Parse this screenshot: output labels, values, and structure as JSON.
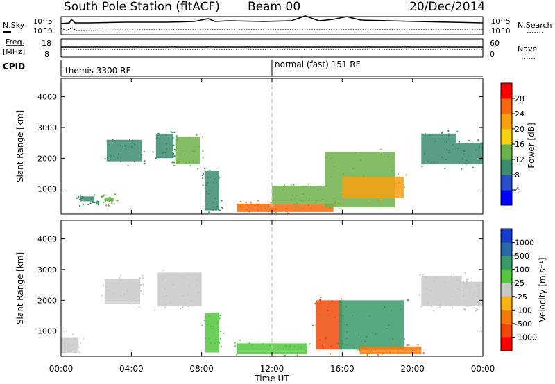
{
  "header": {
    "title": "South Pole Station (fitACF)",
    "beam": "Beam 00",
    "date": "20/Dec/2014"
  },
  "side_labels": {
    "nsky": "N.Sky",
    "freq": "Freq.",
    "freq_unit": "[MHz]",
    "cpid": "CPID",
    "nsearch": "N.Search",
    "nave": "Nave"
  },
  "cpid_programs": [
    {
      "label": "themis 3300 RF",
      "start_hour": 0
    },
    {
      "label": "normal (fast) 151 RF",
      "start_hour": 12
    }
  ],
  "noise_panel": {
    "left_ticks": [
      "10^5",
      "10^0"
    ],
    "right_ticks": [
      "10^5",
      "10^0"
    ]
  },
  "freq_panel": {
    "left_ticks": [
      "18",
      "8"
    ],
    "right_ticks": [
      "60",
      "0"
    ]
  },
  "x_axis": {
    "label": "Time UT",
    "ticks": [
      "00:00",
      "04:00",
      "08:00",
      "12:00",
      "16:00",
      "20:00",
      "00:00"
    ]
  },
  "power_panel": {
    "ylabel": "Slant Range [km]",
    "yticks": [
      "1000",
      "2000",
      "3000",
      "4000"
    ],
    "colorbar_label": "Power [dB]",
    "colorbar_ticks": [
      "4",
      "8",
      "12",
      "16",
      "20",
      "24",
      "28"
    ],
    "colorbar_colors": [
      "#0000ff",
      "#2a50c8",
      "#3c8c6e",
      "#6fb24a",
      "#f5d10f",
      "#f7a010",
      "#f46a0c",
      "#ff0000"
    ]
  },
  "velocity_panel": {
    "ylabel": "Slant Range [km]",
    "yticks": [
      "1000",
      "2000",
      "3000",
      "4000"
    ],
    "colorbar_label": "Velocity [m s⁻¹]",
    "colorbar_ticks": [
      "1000",
      "500",
      "100",
      "25",
      "-25",
      "-100",
      "-500",
      "-1000"
    ],
    "colorbar_colors": [
      "#1a3dcc",
      "#2a6aa8",
      "#3a9a6a",
      "#55c640",
      "#c8c8c8",
      "#f7b414",
      "#f47a0c",
      "#f04a0a",
      "#ff0000"
    ]
  },
  "chart_data": [
    {
      "type": "heatmap",
      "title": "South Pole Station (fitACF)   Beam 00   20/Dec/2014",
      "xlabel": "Time UT",
      "ylabel": "Slant Range [km]",
      "xlim_hours": [
        0,
        24
      ],
      "ylim_km": [
        180,
        4600
      ],
      "zlabel": "Power [dB]",
      "zlim": [
        0,
        30
      ],
      "regions": [
        {
          "t0": 1.1,
          "t1": 1.9,
          "r0": 600,
          "r1": 760,
          "value": 10
        },
        {
          "t0": 2.5,
          "t1": 3.0,
          "r0": 600,
          "r1": 720,
          "value": 12
        },
        {
          "t0": 2.6,
          "t1": 4.6,
          "r0": 1900,
          "r1": 2600,
          "value": 10
        },
        {
          "t0": 5.4,
          "t1": 6.4,
          "r0": 2000,
          "r1": 2800,
          "value": 8
        },
        {
          "t0": 6.5,
          "t1": 7.9,
          "r0": 1800,
          "r1": 2700,
          "value": 12
        },
        {
          "t0": 8.2,
          "t1": 9.0,
          "r0": 300,
          "r1": 1600,
          "value": 8
        },
        {
          "t0": 10.0,
          "t1": 12.0,
          "r0": 250,
          "r1": 520,
          "value": 26
        },
        {
          "t0": 12.0,
          "t1": 15.5,
          "r0": 250,
          "r1": 520,
          "value": 25
        },
        {
          "t0": 12.0,
          "t1": 15.0,
          "r0": 500,
          "r1": 1100,
          "value": 14
        },
        {
          "t0": 15.0,
          "t1": 19.0,
          "r0": 400,
          "r1": 2200,
          "value": 14
        },
        {
          "t0": 16.0,
          "t1": 19.5,
          "r0": 700,
          "r1": 1400,
          "value": 20
        },
        {
          "t0": 20.5,
          "t1": 22.5,
          "r0": 1800,
          "r1": 2800,
          "value": 10
        },
        {
          "t0": 22.5,
          "t1": 24.0,
          "r0": 1800,
          "r1": 2500,
          "value": 10
        }
      ]
    },
    {
      "type": "heatmap",
      "title": "Velocity",
      "xlabel": "Time UT",
      "ylabel": "Slant Range [km]",
      "xlim_hours": [
        0,
        24
      ],
      "ylim_km": [
        180,
        4600
      ],
      "zlabel": "Velocity [m s⁻¹]",
      "zlim": [
        -1000,
        1000
      ],
      "regions": [
        {
          "t0": 0.0,
          "t1": 1.0,
          "r0": 300,
          "r1": 800,
          "value": 0
        },
        {
          "t0": 2.5,
          "t1": 4.5,
          "r0": 1900,
          "r1": 2700,
          "value": 0
        },
        {
          "t0": 5.5,
          "t1": 8.0,
          "r0": 1800,
          "r1": 2900,
          "value": 0
        },
        {
          "t0": 8.2,
          "t1": 9.0,
          "r0": 300,
          "r1": 1600,
          "value": 50
        },
        {
          "t0": 10.0,
          "t1": 14.0,
          "r0": 250,
          "r1": 600,
          "value": 80
        },
        {
          "t0": 14.5,
          "t1": 16.0,
          "r0": 400,
          "r1": 2000,
          "value": -600
        },
        {
          "t0": 15.8,
          "t1": 19.5,
          "r0": 400,
          "r1": 2000,
          "value": 400
        },
        {
          "t0": 17.0,
          "t1": 20.5,
          "r0": 250,
          "r1": 500,
          "value": -300
        },
        {
          "t0": 20.5,
          "t1": 22.8,
          "r0": 1800,
          "r1": 2800,
          "value": 0
        },
        {
          "t0": 22.8,
          "t1": 24.0,
          "r0": 1800,
          "r1": 2600,
          "value": 10
        }
      ]
    }
  ]
}
